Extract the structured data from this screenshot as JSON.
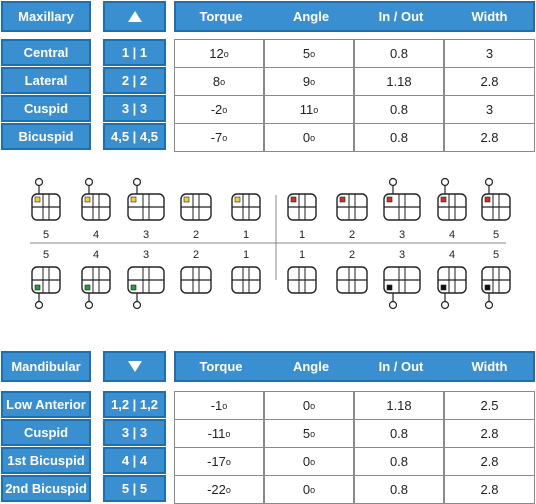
{
  "maxillary": {
    "label": "Maxillary",
    "columns": [
      "Torque",
      "Angle",
      "In / Out",
      "Width"
    ],
    "rows": [
      {
        "name": "Central",
        "teeth": "1 | 1",
        "torque": "12",
        "angle": "5",
        "inout": "0.8",
        "width": "3"
      },
      {
        "name": "Lateral",
        "teeth": "2 | 2",
        "torque": "8",
        "angle": "9",
        "inout": "1.18",
        "width": "2.8"
      },
      {
        "name": "Cuspid",
        "teeth": "3 | 3",
        "torque": "-2",
        "angle": "11",
        "inout": "0.8",
        "width": "3"
      },
      {
        "name": "Bicuspid",
        "teeth": "4,5 | 4,5",
        "torque": "-7",
        "angle": "0",
        "inout": "0.8",
        "width": "2.8"
      }
    ]
  },
  "mandibular": {
    "label": "Mandibular",
    "columns": [
      "Torque",
      "Angle",
      "In / Out",
      "Width"
    ],
    "rows": [
      {
        "name": "Low Anterior",
        "teeth": "1,2 | 1,2",
        "torque": "-1",
        "angle": "0",
        "inout": "1.18",
        "width": "2.5"
      },
      {
        "name": "Cuspid",
        "teeth": "3 | 3",
        "torque": "-11",
        "angle": "5",
        "inout": "0.8",
        "width": "2.8"
      },
      {
        "name": "1st Bicuspid",
        "teeth": "4 | 4",
        "torque": "-17",
        "angle": "0",
        "inout": "0.8",
        "width": "2.8"
      },
      {
        "name": "2nd Bicuspid",
        "teeth": "5 | 5",
        "torque": "-22",
        "angle": "0",
        "inout": "0.8",
        "width": "2.8"
      }
    ]
  },
  "diagram": {
    "upper_numbers": [
      "5",
      "4",
      "3",
      "2",
      "1",
      "1",
      "2",
      "3",
      "4",
      "5"
    ],
    "lower_numbers": [
      "5",
      "4",
      "3",
      "2",
      "1",
      "1",
      "2",
      "3",
      "4",
      "5"
    ],
    "degree_symbol": "o",
    "marker_colors": {
      "yellow": "#e8d43a",
      "red": "#d03030",
      "green": "#2a9a3a",
      "black": "#111111"
    }
  }
}
